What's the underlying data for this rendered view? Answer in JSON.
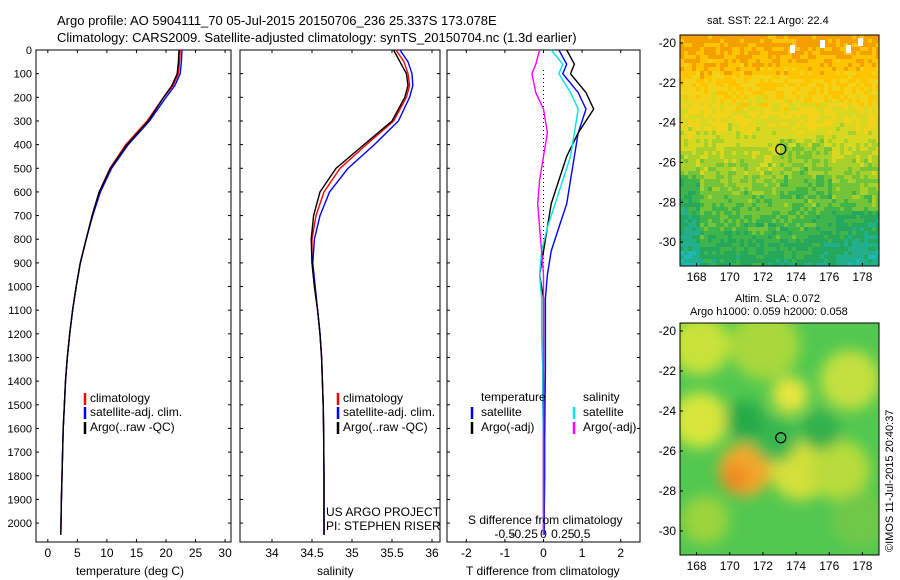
{
  "header": {
    "line1": "Argo profile: AO 5904111_70 05-Jul-2015 20150706_236 25.337S 173.078E",
    "line2": "Climatology: CARS2009. Satellite-adjusted climatology: synTS_20150704.nc (1.3d earlier)"
  },
  "colors": {
    "climatology": "#ff0000",
    "satellite": "#0000ff",
    "argo": "#000000",
    "salinity_sat": "#00e5e5",
    "salinity_argo": "#ff00ff"
  },
  "chart_data": [
    {
      "type": "line",
      "id": "temperature",
      "xlabel": "temperature (deg C)",
      "ylabel": "",
      "xlim": [
        -2,
        31
      ],
      "ylim": [
        2080,
        0
      ],
      "xticks": [
        "0",
        "5",
        "10",
        "15",
        "20",
        "25",
        "30"
      ],
      "yticks": [
        "0",
        "100",
        "200",
        "300",
        "400",
        "500",
        "600",
        "700",
        "800",
        "900",
        "1000",
        "1100",
        "1200",
        "1300",
        "1400",
        "1500",
        "1600",
        "1700",
        "1800",
        "1900",
        "2000"
      ],
      "legend": [
        "climatology",
        "satellite-adj. clim.",
        "Argo(..raw -QC)"
      ],
      "series": [
        {
          "name": "climatology",
          "color": "#ff0000",
          "x": [
            22.4,
            22.3,
            22.1,
            21.2,
            19.6,
            16.8,
            13.2,
            10.5,
            8.7,
            7.5,
            6.5,
            5.5,
            4.8,
            4.2,
            3.7,
            3.3,
            3.0,
            2.8,
            2.6,
            2.5,
            2.4,
            2.3,
            2.2
          ],
          "y": [
            0,
            50,
            100,
            150,
            200,
            300,
            400,
            500,
            600,
            700,
            800,
            900,
            1000,
            1100,
            1200,
            1300,
            1400,
            1500,
            1600,
            1700,
            1800,
            1900,
            2050
          ]
        },
        {
          "name": "satellite-adj. clim.",
          "color": "#0000ff",
          "x": [
            22.7,
            22.6,
            22.4,
            21.5,
            20.0,
            17.2,
            13.6,
            10.8,
            8.9,
            7.6,
            6.5,
            5.5,
            4.8,
            4.2,
            3.7,
            3.3,
            3.0,
            2.8,
            2.6,
            2.5,
            2.4,
            2.3,
            2.2
          ],
          "y": [
            0,
            50,
            100,
            150,
            200,
            300,
            400,
            500,
            600,
            700,
            800,
            900,
            1000,
            1100,
            1200,
            1300,
            1400,
            1500,
            1600,
            1700,
            1800,
            1900,
            2050
          ]
        },
        {
          "name": "Argo(..raw -QC)",
          "color": "#000000",
          "x": [
            22.2,
            22.1,
            21.9,
            21.0,
            19.6,
            17.0,
            13.4,
            10.6,
            8.7,
            7.5,
            6.5,
            5.5,
            4.8,
            4.2,
            3.7,
            3.3,
            3.0,
            2.8,
            2.6,
            2.5,
            2.4,
            2.3,
            2.2
          ],
          "y": [
            0,
            50,
            100,
            150,
            200,
            300,
            400,
            500,
            600,
            700,
            800,
            900,
            1000,
            1100,
            1200,
            1300,
            1400,
            1500,
            1600,
            1700,
            1800,
            1900,
            2050
          ]
        }
      ]
    },
    {
      "type": "line",
      "id": "salinity",
      "xlabel": "salinity",
      "ylabel": "",
      "xlim": [
        33.6,
        36.1
      ],
      "ylim": [
        2080,
        0
      ],
      "xticks": [
        "34",
        "34.5",
        "35",
        "35.5",
        "36"
      ],
      "legend": [
        "climatology",
        "satellite-adj. clim.",
        "Argo(..raw -QC)"
      ],
      "annotation": [
        "US ARGO PROJECT",
        "PI: STEPHEN RISER"
      ],
      "series": [
        {
          "name": "climatology",
          "color": "#ff0000",
          "x": [
            35.55,
            35.65,
            35.7,
            35.72,
            35.68,
            35.52,
            35.18,
            34.85,
            34.65,
            34.55,
            34.5,
            34.5,
            34.53,
            34.57,
            34.6,
            34.62,
            34.63,
            34.64,
            34.645,
            34.65,
            34.65
          ],
          "y": [
            0,
            50,
            100,
            150,
            200,
            300,
            400,
            500,
            600,
            700,
            800,
            900,
            1000,
            1100,
            1200,
            1300,
            1400,
            1500,
            1600,
            1800,
            2050
          ]
        },
        {
          "name": "satellite-adj. clim.",
          "color": "#0000ff",
          "x": [
            35.6,
            35.7,
            35.75,
            35.76,
            35.72,
            35.58,
            35.28,
            34.95,
            34.72,
            34.6,
            34.53,
            34.51,
            34.54,
            34.57,
            34.6,
            34.62,
            34.63,
            34.64,
            34.645,
            34.65,
            34.65
          ],
          "y": [
            0,
            50,
            100,
            150,
            200,
            300,
            400,
            500,
            600,
            700,
            800,
            900,
            1000,
            1100,
            1200,
            1300,
            1400,
            1500,
            1600,
            1800,
            2050
          ]
        },
        {
          "name": "Argo(..raw -QC)",
          "color": "#000000",
          "x": [
            35.52,
            35.6,
            35.68,
            35.7,
            35.66,
            35.5,
            35.15,
            34.8,
            34.6,
            34.52,
            34.49,
            34.5,
            34.53,
            34.57,
            34.6,
            34.62,
            34.63,
            34.64,
            34.645,
            34.65,
            34.65
          ],
          "y": [
            0,
            50,
            100,
            150,
            200,
            300,
            400,
            500,
            600,
            700,
            800,
            900,
            1000,
            1100,
            1200,
            1300,
            1400,
            1500,
            1600,
            1800,
            2050
          ]
        }
      ]
    },
    {
      "type": "line",
      "id": "difference",
      "xlabel": "T difference from climatology",
      "xlabel_top": "S difference from climatology",
      "xlim": [
        -2.5,
        2.5
      ],
      "ylim": [
        2080,
        0
      ],
      "xticks": [
        "-2",
        "-1",
        "0",
        "1",
        "2"
      ],
      "xticks_top": [
        "-0.5",
        "-0.25",
        "0",
        "0.25",
        "0.5"
      ],
      "legend_left_title": "temperature",
      "legend_right_title": "salinity",
      "legend_left": [
        "satellite",
        "Argo(-adj)"
      ],
      "legend_right": [
        "satellite",
        "Argo(-adj)"
      ],
      "series": [
        {
          "name": "temperature satellite",
          "color": "#0000ff",
          "x": [
            0.4,
            0.6,
            0.5,
            0.9,
            1.1,
            0.9,
            0.8,
            0.7,
            0.6,
            0.4,
            0.2,
            0.1,
            0.05,
            0.05,
            0.05,
            0.04,
            0.03,
            0.03,
            0.02,
            0.02
          ],
          "y": [
            0,
            60,
            100,
            180,
            250,
            350,
            450,
            550,
            650,
            750,
            850,
            950,
            1050,
            1200,
            1350,
            1500,
            1650,
            1800,
            1950,
            2050
          ]
        },
        {
          "name": "temperature Argo(-adj)",
          "color": "#000000",
          "x": [
            0.6,
            0.8,
            0.7,
            1.1,
            1.3,
            0.9,
            0.6,
            0.4,
            0.2,
            0.1,
            0.0,
            -0.1,
            0.0,
            0.0,
            0.0,
            0.0,
            0.0,
            0.0,
            0.0,
            0.0
          ],
          "y": [
            0,
            60,
            100,
            180,
            250,
            350,
            450,
            550,
            650,
            750,
            850,
            950,
            1050,
            1200,
            1350,
            1500,
            1650,
            1800,
            1950,
            2050
          ]
        },
        {
          "name": "salinity satellite",
          "color": "#00e5e5",
          "x": [
            0.2,
            0.5,
            0.4,
            0.7,
            0.9,
            0.8,
            0.7,
            0.5,
            0.3,
            0.1,
            -0.05,
            -0.1,
            -0.05,
            -0.05,
            -0.02,
            -0.02,
            0.0,
            0.0,
            0.0,
            0.0
          ],
          "y": [
            0,
            60,
            100,
            180,
            250,
            350,
            450,
            550,
            650,
            750,
            850,
            950,
            1050,
            1200,
            1350,
            1500,
            1650,
            1800,
            1950,
            2050
          ]
        },
        {
          "name": "salinity Argo(-adj)",
          "color": "#ff00ff",
          "x": [
            -0.1,
            -0.2,
            -0.3,
            -0.2,
            0.0,
            0.1,
            0.0,
            -0.1,
            -0.15,
            -0.1,
            -0.05,
            0.0,
            0.0,
            0.0,
            0.0,
            0.0,
            0.0,
            0.0,
            0.0,
            0.0
          ],
          "y": [
            0,
            60,
            100,
            180,
            250,
            350,
            450,
            550,
            650,
            750,
            850,
            950,
            1050,
            1200,
            1350,
            1500,
            1650,
            1800,
            1950,
            2050
          ]
        }
      ]
    },
    {
      "type": "heatmap",
      "id": "sst-map",
      "title": "sat. SST: 22.1  Argo: 22.4",
      "xlim": [
        167,
        179
      ],
      "ylim": [
        -31.2,
        -19.6
      ],
      "xticks": [
        "168",
        "170",
        "172",
        "174",
        "176",
        "178"
      ],
      "yticks": [
        "-20",
        "-22",
        "-24",
        "-26",
        "-28",
        "-30"
      ],
      "marker": {
        "lon": 173.078,
        "lat": -25.337
      }
    },
    {
      "type": "heatmap",
      "id": "sla-map",
      "title": "Altim. SLA: 0.072",
      "subtitle": "Argo h1000: 0.059 h2000: 0.058",
      "xlim": [
        167,
        179
      ],
      "ylim": [
        -31.2,
        -19.6
      ],
      "xticks": [
        "168",
        "170",
        "172",
        "174",
        "176",
        "178"
      ],
      "yticks": [
        "-20",
        "-22",
        "-24",
        "-26",
        "-28",
        "-30"
      ],
      "marker": {
        "lon": 173.078,
        "lat": -25.337
      }
    }
  ],
  "stamp": "©IMOS 11-Jul-2015 20:40:37"
}
